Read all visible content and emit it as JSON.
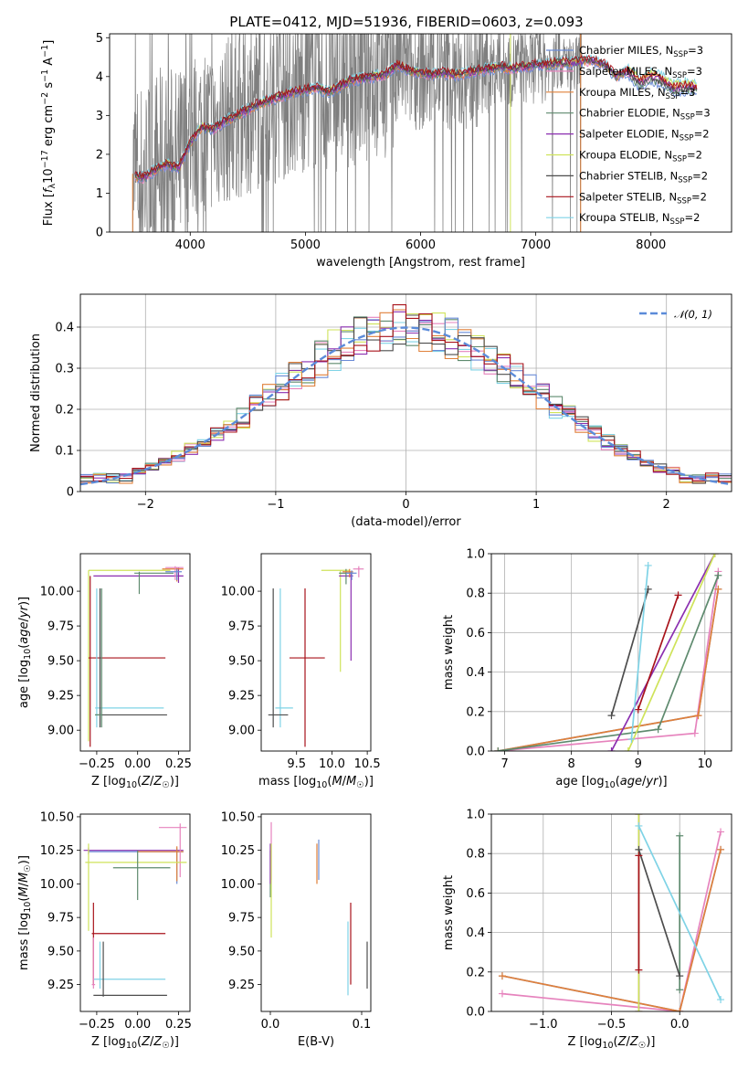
{
  "figure": {
    "title": "PLATE=0412, MJD=51936, FIBERID=0603, z=0.093"
  },
  "series_styles": [
    {
      "name": "Chabrier MILES, N_SSP=3",
      "color": "#6a8bd6"
    },
    {
      "name": "Salpeter MILES, N_SSP=3",
      "color": "#e683bd"
    },
    {
      "name": "Kroupa MILES, N_SSP=3",
      "color": "#e0803a"
    },
    {
      "name": "Chabrier ELODIE, N_SSP=3",
      "color": "#5e8a6e"
    },
    {
      "name": "Salpeter ELODIE, N_SSP=2",
      "color": "#8b2fb0"
    },
    {
      "name": "Kroupa ELODIE, N_SSP=2",
      "color": "#cfe35a"
    },
    {
      "name": "Chabrier STELIB, N_SSP=2",
      "color": "#4d4d4d"
    },
    {
      "name": "Salpeter STELIB, N_SSP=2",
      "color": "#a8131b"
    },
    {
      "name": "Kroupa STELIB, N_SSP=2",
      "color": "#7fd3e6"
    }
  ],
  "chart_data": [
    {
      "id": "spectrum",
      "type": "line",
      "title": "PLATE=0412, MJD=51936, FIBERID=0603, z=0.093",
      "xlabel": "wavelength [Angstrom, rest frame]",
      "ylabel": "Flux [f_λ 10^-17 erg cm^-2 s^-1 A^-1]",
      "xlim": [
        3300,
        8700
      ],
      "ylim": [
        0,
        5.1
      ],
      "xticks": [
        4000,
        5000,
        6000,
        7000,
        8000
      ],
      "yticks": [
        0,
        1,
        2,
        3,
        4,
        5
      ],
      "legend_position": "upper right",
      "legend": [
        {
          "label": "Chabrier MILES, N",
          "sub": "SSP",
          "tail": "=3",
          "color": "#6a8bd6"
        },
        {
          "label": "Salpeter MILES, N",
          "sub": "SSP",
          "tail": "=3",
          "color": "#e683bd"
        },
        {
          "label": "Kroupa MILES, N",
          "sub": "SSP",
          "tail": "=3",
          "color": "#e0803a"
        },
        {
          "label": "Chabrier ELODIE, N",
          "sub": "SSP",
          "tail": "=3",
          "color": "#5e8a6e"
        },
        {
          "label": "Salpeter ELODIE, N",
          "sub": "SSP",
          "tail": "=2",
          "color": "#8b2fb0"
        },
        {
          "label": "Kroupa ELODIE, N",
          "sub": "SSP",
          "tail": "=2",
          "color": "#cfe35a"
        },
        {
          "label": "Chabrier STELIB, N",
          "sub": "SSP",
          "tail": "=2",
          "color": "#4d4d4d"
        },
        {
          "label": "Salpeter STELIB, N",
          "sub": "SSP",
          "tail": "=2",
          "color": "#a8131b"
        },
        {
          "label": "Kroupa STELIB, N",
          "sub": "SSP",
          "tail": "=2",
          "color": "#7fd3e6"
        }
      ],
      "model_continuum": {
        "x": [
          3500,
          3600,
          3700,
          3800,
          3900,
          4000,
          4100,
          4200,
          4300,
          4400,
          4500,
          4600,
          4700,
          4800,
          4900,
          5000,
          5100,
          5200,
          5300,
          5400,
          5500,
          5600,
          5700,
          5800,
          5900,
          6000,
          6100,
          6200,
          6300,
          6400,
          6500,
          6600,
          6700,
          6800,
          6900,
          7000,
          7100,
          7200,
          7300,
          7400,
          7500,
          7600,
          7700,
          7800,
          7900,
          8000,
          8100,
          8200,
          8300,
          8400
        ],
        "y": [
          1.45,
          1.4,
          1.6,
          1.75,
          1.65,
          2.3,
          2.7,
          2.65,
          2.85,
          3.0,
          3.15,
          3.3,
          3.4,
          3.5,
          3.6,
          3.65,
          3.7,
          3.6,
          3.75,
          3.9,
          3.95,
          4.0,
          4.05,
          4.3,
          4.15,
          4.1,
          4.05,
          4.1,
          4.05,
          4.1,
          4.15,
          4.2,
          4.25,
          4.2,
          4.25,
          4.3,
          4.3,
          4.35,
          4.35,
          4.4,
          4.4,
          4.3,
          4.0,
          4.15,
          3.85,
          4.0,
          3.9,
          3.7,
          3.75,
          3.7
        ]
      }
    },
    {
      "id": "residuals",
      "type": "step",
      "xlabel": "(data-model)/error",
      "ylabel": "Normed distribution",
      "xlim": [
        -2.5,
        2.5
      ],
      "ylim": [
        0,
        0.48
      ],
      "xticks": [
        -2,
        -1,
        0,
        1,
        2
      ],
      "yticks": [
        0.0,
        0.1,
        0.2,
        0.3,
        0.4
      ],
      "legend_position": "upper right",
      "legend": [
        {
          "label": "N(0,1)",
          "display": "𝒩(0, 1)",
          "color": "#5b8bd9",
          "style": "dashed"
        }
      ],
      "bin_width": 0.1
    },
    {
      "id": "age-vs-Z",
      "type": "errorbar",
      "xlabel": "Z [log10(Z/Z☉)]",
      "ylabel": "age [log10(age/yr)]",
      "xlim": [
        -0.35,
        0.32
      ],
      "ylim": [
        8.85,
        10.27
      ],
      "xticks": [
        -0.25,
        0.0,
        0.25
      ],
      "xticklabels": [
        "−0.25",
        "0.00",
        "0.25"
      ],
      "yticks": [
        9.0,
        9.25,
        9.5,
        9.75,
        10.0
      ],
      "yticklabels": [
        "9.00",
        "9.25",
        "9.50",
        "9.75",
        "10.00"
      ],
      "points": [
        {
          "color": "#6a8bd6",
          "x": [
            -0.28,
            0.27
          ],
          "y": [
            8.86,
            10.17
          ]
        },
        {
          "color": "#e683bd",
          "x": [
            -0.28,
            0.27
          ],
          "y": [
            8.86,
            10.17
          ]
        },
        {
          "color": "#e0803a",
          "x": [
            -0.28,
            0.26
          ],
          "y": [
            8.86,
            10.15
          ]
        },
        {
          "color": "#5e8a6e",
          "x": [
            -0.24,
            0.01
          ],
          "y": [
            9.02,
            10.12
          ]
        },
        {
          "color": "#8b2fb0",
          "x": [
            -0.3,
            0.28
          ],
          "y": [
            8.88,
            10.13
          ]
        },
        {
          "color": "#cfe35a",
          "x": [
            -0.3,
            0.22
          ],
          "y": [
            8.9,
            10.15
          ]
        },
        {
          "color": "#4d4d4d",
          "x": [
            -0.26,
            0.18
          ],
          "y": [
            9.02,
            10.13
          ]
        },
        {
          "color": "#a8131b",
          "x": [
            -0.28,
            0.17
          ],
          "y": [
            8.9,
            10.13
          ]
        },
        {
          "color": "#7fd3e6",
          "x": [
            -0.26,
            0.16
          ],
          "y": [
            9.0,
            10.13
          ]
        }
      ]
    },
    {
      "id": "age-vs-mass",
      "type": "errorbar",
      "xlabel": "mass [log10(M/M☉)]",
      "xlim": [
        9.0,
        10.55
      ],
      "ylim": [
        8.85,
        10.27
      ],
      "xticks": [
        9.5,
        10.0,
        10.5
      ],
      "xticklabels": [
        "9.5",
        "10.0",
        "10.5"
      ],
      "yticks": [
        9.0,
        9.25,
        9.5,
        9.75,
        10.0
      ],
      "yticklabels": [
        "9.00",
        "9.25",
        "9.50",
        "9.75",
        "10.00"
      ],
      "points": [
        {
          "color": "#6a8bd6",
          "x": [
            10.28,
            10.4
          ],
          "y": [
            10.14,
            10.18
          ]
        },
        {
          "color": "#e683bd",
          "x": [
            10.28,
            10.43
          ],
          "y": [
            10.14,
            10.18
          ]
        },
        {
          "color": "#e0803a",
          "x": [
            10.25,
            10.35
          ],
          "y": [
            10.13,
            10.17
          ]
        },
        {
          "color": "#5e8a6e",
          "x": [
            10.1,
            10.3
          ],
          "y": [
            9.95,
            10.15
          ]
        }
      ]
    },
    {
      "id": "massweight-vs-age",
      "type": "line",
      "xlabel": "age [log10(age/yr)]",
      "ylabel": "mass weight",
      "xlim": [
        6.8,
        10.4
      ],
      "ylim": [
        0,
        1.0
      ],
      "xticks": [
        7,
        8,
        9,
        10
      ],
      "yticks": [
        0.0,
        0.2,
        0.4,
        0.6,
        0.8,
        1.0
      ],
      "yticklabels": [
        "0.0",
        "0.2",
        "0.4",
        "0.6",
        "0.8",
        "1.0"
      ],
      "series": [
        {
          "color": "#6a8bd6",
          "x": [
            6.9,
            9.9,
            10.2
          ],
          "y": [
            0.0,
            0.18,
            0.82
          ]
        },
        {
          "color": "#e683bd",
          "x": [
            6.9,
            9.85,
            10.2
          ],
          "y": [
            0.0,
            0.09,
            0.91
          ]
        },
        {
          "color": "#e0803a",
          "x": [
            6.9,
            9.9,
            10.2
          ],
          "y": [
            0.0,
            0.18,
            0.82
          ]
        },
        {
          "color": "#5e8a6e",
          "x": [
            6.9,
            9.3,
            10.2
          ],
          "y": [
            0.0,
            0.11,
            0.89
          ]
        },
        {
          "color": "#8b2fb0",
          "x": [
            8.6,
            10.15
          ],
          "y": [
            0.0,
            1.0
          ]
        },
        {
          "color": "#cfe35a",
          "x": [
            8.85,
            10.15
          ],
          "y": [
            0.0,
            1.0
          ]
        },
        {
          "color": "#4d4d4d",
          "x": [
            8.6,
            9.15
          ],
          "y": [
            0.18,
            0.82
          ]
        },
        {
          "color": "#a8131b",
          "x": [
            9.0,
            9.6
          ],
          "y": [
            0.21,
            0.79
          ]
        },
        {
          "color": "#7fd3e6",
          "x": [
            8.9,
            9.15
          ],
          "y": [
            0.06,
            0.94
          ]
        }
      ]
    },
    {
      "id": "mass-vs-Z",
      "type": "errorbar",
      "xlabel": "Z [log10(Z/Z☉)]",
      "ylabel": "mass [log10(M/M☉)]",
      "xlim": [
        -0.35,
        0.32
      ],
      "ylim": [
        9.05,
        10.52
      ],
      "xticks": [
        -0.25,
        0.0,
        0.25
      ],
      "xticklabels": [
        "−0.25",
        "0.00",
        "0.25"
      ],
      "yticks": [
        9.25,
        9.5,
        9.75,
        10.0,
        10.25,
        10.5
      ],
      "yticklabels": [
        "9.25",
        "9.50",
        "9.75",
        "10.00",
        "10.25",
        "10.50"
      ],
      "points": [
        {
          "color": "#6a8bd6",
          "x": [
            -0.3,
            0.28
          ],
          "y": [
            10.0,
            10.25
          ]
        },
        {
          "color": "#e683bd",
          "x": [
            0.14,
            0.3
          ],
          "y": [
            10.03,
            10.43
          ]
        },
        {
          "color": "#e0803a",
          "x": [
            -0.3,
            0.28
          ],
          "y": [
            10.02,
            10.3
          ]
        },
        {
          "color": "#5e8a6e",
          "x": [
            -0.17,
            0.2
          ],
          "y": [
            9.88,
            10.2
          ]
        },
        {
          "color": "#8b2fb0",
          "x": [
            -0.32,
            0.28
          ],
          "y": [
            10.0,
            10.3
          ]
        },
        {
          "color": "#cfe35a",
          "x": [
            -0.32,
            0.3
          ],
          "y": [
            9.65,
            10.3
          ]
        },
        {
          "color": "#4d4d4d",
          "x": [
            -0.27,
            0.18
          ],
          "y": [
            9.17,
            9.58
          ]
        },
        {
          "color": "#a8131b",
          "x": [
            -0.28,
            0.17
          ],
          "y": [
            9.28,
            9.87
          ]
        },
        {
          "color": "#7fd3e6",
          "x": [
            -0.27,
            0.16
          ],
          "y": [
            9.2,
            9.6
          ]
        }
      ]
    },
    {
      "id": "mass-vs-EBV",
      "type": "errorbar",
      "xlabel": "E(B-V)",
      "xlim": [
        -0.01,
        0.11
      ],
      "ylim": [
        9.05,
        10.52
      ],
      "xticks": [
        0.0,
        0.1
      ],
      "xticklabels": [
        "0.0",
        "0.1"
      ],
      "yticks": [
        9.25,
        9.5,
        9.75,
        10.0,
        10.25,
        10.5
      ],
      "yticklabels": [
        "9.25",
        "9.50",
        "9.75",
        "10.00",
        "10.25",
        "10.50"
      ],
      "points": [
        {
          "color": "#6a8bd6",
          "x": [
            0.053,
            0.053
          ],
          "y": [
            10.03,
            10.33
          ]
        },
        {
          "color": "#e683bd",
          "x": [
            0.001,
            0.001
          ],
          "y": [
            10.03,
            10.46
          ]
        },
        {
          "color": "#e0803a",
          "x": [
            0.051,
            0.051
          ],
          "y": [
            10.0,
            10.3
          ]
        },
        {
          "color": "#5e8a6e",
          "x": [
            0.0,
            0.0
          ],
          "y": [
            9.9,
            10.25
          ]
        },
        {
          "color": "#8b2fb0",
          "x": [
            0.0,
            0.0
          ],
          "y": [
            10.0,
            10.3
          ]
        },
        {
          "color": "#cfe35a",
          "x": [
            0.001,
            0.001
          ],
          "y": [
            9.6,
            10.3
          ]
        },
        {
          "color": "#4d4d4d",
          "x": [
            0.106,
            0.106
          ],
          "y": [
            9.22,
            9.57
          ]
        },
        {
          "color": "#a8131b",
          "x": [
            0.088,
            0.088
          ],
          "y": [
            9.25,
            9.86
          ]
        },
        {
          "color": "#7fd3e6",
          "x": [
            0.085,
            0.085
          ],
          "y": [
            9.17,
            9.72
          ]
        }
      ]
    },
    {
      "id": "massweight-vs-Z",
      "type": "line",
      "xlabel": "Z [log10(Z/Z☉)]",
      "ylabel": "mass weight",
      "xlim": [
        -1.38,
        0.38
      ],
      "ylim": [
        0,
        1.0
      ],
      "xticks": [
        -1.0,
        -0.5,
        0.0
      ],
      "xticklabels": [
        "−1.0",
        "−0.5",
        "0.0"
      ],
      "yticks": [
        0.0,
        0.2,
        0.4,
        0.6,
        0.8,
        1.0
      ],
      "yticklabels": [
        "0.0",
        "0.2",
        "0.4",
        "0.6",
        "0.8",
        "1.0"
      ],
      "series": [
        {
          "color": "#6a8bd6",
          "x": [
            -1.3,
            0.0,
            0.3
          ],
          "y": [
            0.18,
            0.0,
            0.82
          ]
        },
        {
          "color": "#e683bd",
          "x": [
            -1.3,
            0.0,
            0.3
          ],
          "y": [
            0.09,
            0.0,
            0.91
          ]
        },
        {
          "color": "#e0803a",
          "x": [
            -1.3,
            0.0,
            0.3
          ],
          "y": [
            0.18,
            0.0,
            0.82
          ]
        },
        {
          "color": "#5e8a6e",
          "x": [
            0.0,
            0.0
          ],
          "y": [
            0.11,
            0.89
          ]
        },
        {
          "color": "#8b2fb0",
          "x": [
            -0.3,
            -0.3
          ],
          "y": [
            0.0,
            1.0
          ]
        },
        {
          "color": "#cfe35a",
          "x": [
            -0.3,
            -0.3
          ],
          "y": [
            0.0,
            1.0
          ]
        },
        {
          "color": "#4d4d4d",
          "x": [
            -0.3,
            0.0
          ],
          "y": [
            0.82,
            0.18
          ]
        },
        {
          "color": "#a8131b",
          "x": [
            -0.3,
            -0.3
          ],
          "y": [
            0.21,
            0.79
          ]
        },
        {
          "color": "#7fd3e6",
          "x": [
            -0.3,
            0.3
          ],
          "y": [
            0.94,
            0.06
          ]
        }
      ]
    }
  ]
}
